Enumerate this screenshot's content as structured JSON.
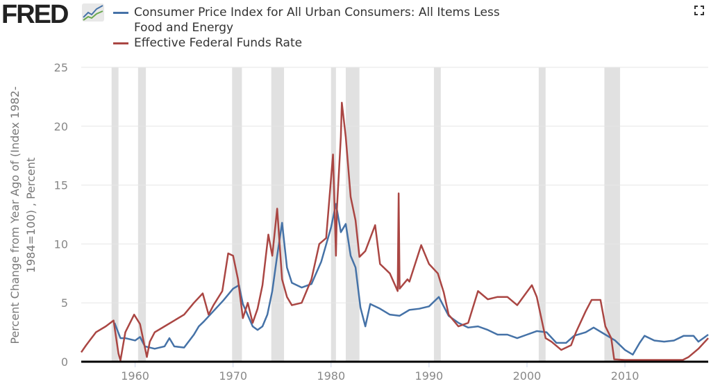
{
  "logo_text": "FRED",
  "fullscreen_icon": "expand-icon",
  "chart_data": {
    "type": "line",
    "title": "",
    "ylabel": "Percent Change from Year Ago of (Index 1982-1984=100) , Percent",
    "ylabel_lines": [
      "Percent Change from Year Ago of (Index 1982-",
      "1984=100) , Percent"
    ],
    "xlim": [
      1954.5,
      2018.5
    ],
    "ylim": [
      0,
      25
    ],
    "yticks": [
      0,
      5,
      10,
      15,
      20,
      25
    ],
    "xticks": [
      1960,
      1970,
      1980,
      1990,
      2000,
      2010
    ],
    "grid": "horizontal",
    "legend_position": "top",
    "recessions": [
      [
        1957.6,
        1958.3
      ],
      [
        1960.3,
        1961.1
      ],
      [
        1969.9,
        1970.9
      ],
      [
        1973.9,
        1975.2
      ],
      [
        1980.0,
        1980.5
      ],
      [
        1981.5,
        1982.9
      ],
      [
        1990.5,
        1991.2
      ],
      [
        2001.2,
        2001.9
      ],
      [
        2007.9,
        2009.5
      ]
    ],
    "series": [
      {
        "name": "Consumer Price Index for All Urban Consumers: All Items Less Food and Energy",
        "legend_lines": [
          "Consumer Price Index for All Urban Consumers: All Items Less",
          "Food and Energy"
        ],
        "color": "#4572a7",
        "points": [
          [
            1957.9,
            3.3
          ],
          [
            1958.5,
            2.0
          ],
          [
            1959,
            2.0
          ],
          [
            1960,
            1.8
          ],
          [
            1960.5,
            2.1
          ],
          [
            1961,
            1.3
          ],
          [
            1962,
            1.1
          ],
          [
            1963,
            1.3
          ],
          [
            1963.5,
            2.0
          ],
          [
            1964,
            1.3
          ],
          [
            1965,
            1.2
          ],
          [
            1966,
            2.3
          ],
          [
            1966.5,
            3.0
          ],
          [
            1967,
            3.4
          ],
          [
            1968,
            4.3
          ],
          [
            1969,
            5.2
          ],
          [
            1970,
            6.2
          ],
          [
            1970.6,
            6.5
          ],
          [
            1971,
            4.9
          ],
          [
            1972,
            3.0
          ],
          [
            1972.5,
            2.7
          ],
          [
            1973,
            3.0
          ],
          [
            1973.5,
            4.0
          ],
          [
            1974,
            6.0
          ],
          [
            1974.5,
            9.0
          ],
          [
            1975,
            11.8
          ],
          [
            1975.5,
            8.0
          ],
          [
            1976,
            6.7
          ],
          [
            1977,
            6.3
          ],
          [
            1978,
            6.6
          ],
          [
            1979,
            8.5
          ],
          [
            1980,
            11.4
          ],
          [
            1980.5,
            13.4
          ],
          [
            1981,
            11.0
          ],
          [
            1981.5,
            11.7
          ],
          [
            1982,
            9.0
          ],
          [
            1982.5,
            8.0
          ],
          [
            1983,
            4.6
          ],
          [
            1983.5,
            3.0
          ],
          [
            1984,
            4.9
          ],
          [
            1985,
            4.5
          ],
          [
            1986,
            4.0
          ],
          [
            1987,
            3.9
          ],
          [
            1988,
            4.4
          ],
          [
            1989,
            4.5
          ],
          [
            1990,
            4.7
          ],
          [
            1991,
            5.5
          ],
          [
            1992,
            3.9
          ],
          [
            1993,
            3.3
          ],
          [
            1994,
            2.9
          ],
          [
            1995,
            3.0
          ],
          [
            1996,
            2.7
          ],
          [
            1997,
            2.3
          ],
          [
            1998,
            2.3
          ],
          [
            1999,
            2.0
          ],
          [
            2000,
            2.3
          ],
          [
            2001,
            2.6
          ],
          [
            2002,
            2.5
          ],
          [
            2003,
            1.6
          ],
          [
            2004,
            1.6
          ],
          [
            2004.8,
            2.2
          ],
          [
            2006,
            2.5
          ],
          [
            2006.8,
            2.9
          ],
          [
            2008,
            2.3
          ],
          [
            2009,
            1.8
          ],
          [
            2010,
            1.0
          ],
          [
            2010.8,
            0.6
          ],
          [
            2011.5,
            1.6
          ],
          [
            2012,
            2.2
          ],
          [
            2013,
            1.8
          ],
          [
            2014,
            1.7
          ],
          [
            2015,
            1.8
          ],
          [
            2016,
            2.2
          ],
          [
            2017,
            2.2
          ],
          [
            2017.5,
            1.7
          ],
          [
            2018,
            2.0
          ],
          [
            2018.5,
            2.3
          ]
        ]
      },
      {
        "name": "Effective Federal Funds Rate",
        "legend_lines": [
          "Effective Federal Funds Rate"
        ],
        "color": "#aa4643",
        "points": [
          [
            1954.5,
            0.8
          ],
          [
            1955,
            1.4
          ],
          [
            1956,
            2.5
          ],
          [
            1957,
            3.0
          ],
          [
            1957.8,
            3.5
          ],
          [
            1958.3,
            0.7
          ],
          [
            1958.5,
            0.1
          ],
          [
            1959,
            2.5
          ],
          [
            1959.9,
            4.0
          ],
          [
            1960.5,
            3.2
          ],
          [
            1960.8,
            2.0
          ],
          [
            1961,
            1.2
          ],
          [
            1961.2,
            0.4
          ],
          [
            1961.5,
            1.7
          ],
          [
            1962,
            2.5
          ],
          [
            1963,
            3.0
          ],
          [
            1964,
            3.5
          ],
          [
            1965,
            4.0
          ],
          [
            1966,
            5.0
          ],
          [
            1966.9,
            5.8
          ],
          [
            1967.5,
            4.0
          ],
          [
            1968,
            4.8
          ],
          [
            1968.9,
            6.0
          ],
          [
            1969.5,
            9.2
          ],
          [
            1970,
            9.0
          ],
          [
            1970.5,
            7.0
          ],
          [
            1971,
            3.7
          ],
          [
            1971.5,
            5.0
          ],
          [
            1972,
            3.3
          ],
          [
            1972.5,
            4.5
          ],
          [
            1973,
            6.5
          ],
          [
            1973.6,
            10.8
          ],
          [
            1974,
            9.0
          ],
          [
            1974.5,
            13.0
          ],
          [
            1975,
            7.0
          ],
          [
            1975.5,
            5.5
          ],
          [
            1976,
            4.8
          ],
          [
            1977,
            5.0
          ],
          [
            1977.5,
            6.0
          ],
          [
            1978,
            7.0
          ],
          [
            1978.8,
            10.0
          ],
          [
            1979.5,
            10.5
          ],
          [
            1980.2,
            17.6
          ],
          [
            1980.5,
            9.0
          ],
          [
            1980.6,
            13.0
          ],
          [
            1981,
            19.1
          ],
          [
            1981.1,
            22.0
          ],
          [
            1981.5,
            19.1
          ],
          [
            1982,
            14.0
          ],
          [
            1982.5,
            12.0
          ],
          [
            1982.9,
            8.9
          ],
          [
            1983.5,
            9.4
          ],
          [
            1984.5,
            11.6
          ],
          [
            1985,
            8.3
          ],
          [
            1986,
            7.5
          ],
          [
            1986.8,
            6.0
          ],
          [
            1986.9,
            14.3
          ],
          [
            1987,
            6.2
          ],
          [
            1987.8,
            7.0
          ],
          [
            1988,
            6.8
          ],
          [
            1989.2,
            9.9
          ],
          [
            1990,
            8.3
          ],
          [
            1990.9,
            7.5
          ],
          [
            1991.5,
            5.9
          ],
          [
            1992,
            4.0
          ],
          [
            1993,
            3.0
          ],
          [
            1994,
            3.3
          ],
          [
            1995,
            6.0
          ],
          [
            1996,
            5.3
          ],
          [
            1997,
            5.5
          ],
          [
            1998,
            5.5
          ],
          [
            1999,
            4.8
          ],
          [
            2000.5,
            6.5
          ],
          [
            2001,
            5.5
          ],
          [
            2001.9,
            2.0
          ],
          [
            2002.5,
            1.7
          ],
          [
            2003.5,
            1.0
          ],
          [
            2004.5,
            1.4
          ],
          [
            2005,
            2.5
          ],
          [
            2006,
            4.3
          ],
          [
            2006.6,
            5.25
          ],
          [
            2007.5,
            5.25
          ],
          [
            2008,
            3.0
          ],
          [
            2008.6,
            2.0
          ],
          [
            2008.9,
            0.2
          ],
          [
            2010,
            0.15
          ],
          [
            2012,
            0.15
          ],
          [
            2015.9,
            0.15
          ],
          [
            2016.5,
            0.4
          ],
          [
            2017.5,
            1.1
          ],
          [
            2018.5,
            2.0
          ]
        ]
      }
    ]
  }
}
